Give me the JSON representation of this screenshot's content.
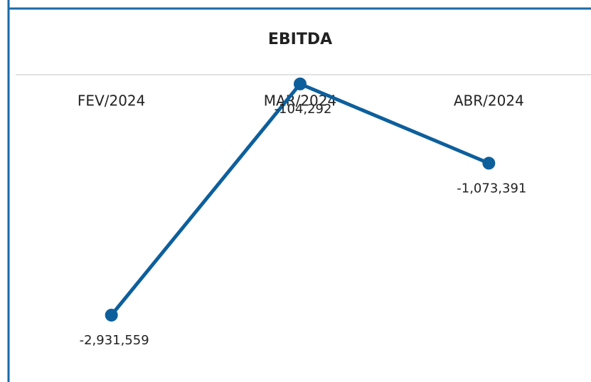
{
  "chart_data": {
    "type": "line",
    "title": "EBITDA",
    "categories": [
      "FEV/2024",
      "MAR/2024",
      "ABR/2024"
    ],
    "values": [
      -2931559,
      -104292,
      -1073391
    ],
    "value_labels": [
      "-2,931,559",
      "-104,292",
      "-1,073,391"
    ],
    "color": "#0d5f9c"
  }
}
